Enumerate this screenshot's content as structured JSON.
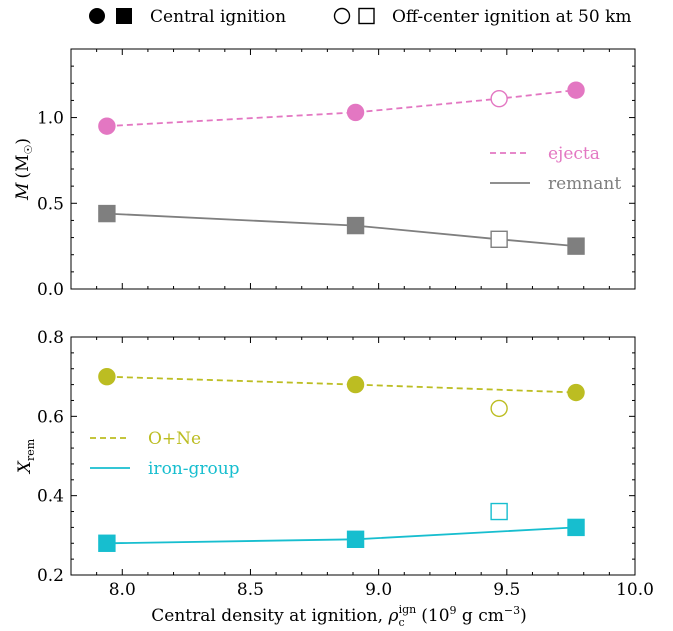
{
  "chart_data": [
    {
      "type": "line",
      "panel": "top",
      "ylabel": "M (M☉)",
      "xlim": [
        7.8,
        10.0
      ],
      "ylim": [
        0.0,
        1.4
      ],
      "yticks": [
        0.0,
        0.5,
        1.0
      ],
      "ytick_labels": [
        "0.0",
        "0.5",
        "1.0"
      ],
      "legend_position": "right",
      "series": [
        {
          "name": "ejecta",
          "color": "#e377c2",
          "style": "dashed",
          "marker": "circle",
          "x": [
            7.94,
            8.91,
            9.47,
            9.77
          ],
          "y": [
            0.95,
            1.03,
            1.11,
            1.16
          ],
          "filled": [
            true,
            true,
            false,
            true
          ]
        },
        {
          "name": "remnant",
          "color": "#7f7f7f",
          "style": "solid",
          "marker": "square",
          "x": [
            7.94,
            8.91,
            9.47,
            9.77
          ],
          "y": [
            0.44,
            0.37,
            0.29,
            0.25
          ],
          "filled": [
            true,
            true,
            false,
            true
          ]
        }
      ]
    },
    {
      "type": "line",
      "panel": "bottom",
      "ylabel": "X_rem",
      "xlabel": "Central density at ignition, ρ_c^ign (10⁹ g cm⁻³)",
      "xlim": [
        7.8,
        10.0
      ],
      "ylim": [
        0.2,
        0.8
      ],
      "xticks": [
        8.0,
        8.5,
        9.0,
        9.5,
        10.0
      ],
      "xtick_labels": [
        "8.0",
        "8.5",
        "9.0",
        "9.5",
        "10.0"
      ],
      "yticks": [
        0.2,
        0.4,
        0.6,
        0.8
      ],
      "ytick_labels": [
        "0.2",
        "0.4",
        "0.6",
        "0.8"
      ],
      "legend_position": "left",
      "series": [
        {
          "name": "O+Ne",
          "color": "#bcbd22",
          "style": "dashed",
          "marker": "circle",
          "x": [
            7.94,
            8.91,
            9.47,
            9.77
          ],
          "y": [
            0.7,
            0.68,
            0.62,
            0.66
          ],
          "filled": [
            true,
            true,
            false,
            true
          ],
          "line_points": [
            0,
            1,
            3
          ]
        },
        {
          "name": "iron-group",
          "color": "#17becf",
          "style": "solid",
          "marker": "square",
          "x": [
            7.94,
            8.91,
            9.47,
            9.77
          ],
          "y": [
            0.28,
            0.29,
            0.36,
            0.32
          ],
          "filled": [
            true,
            true,
            false,
            true
          ],
          "line_points": [
            0,
            1,
            3
          ]
        }
      ]
    }
  ],
  "top_legend": {
    "central": "Central ignition",
    "offcenter": "Off-center ignition at 50 km"
  },
  "xaxis_text": {
    "prefix": "Central density at ignition, ",
    "rho": "ρ",
    "sub": "c",
    "sup": "ign",
    "units_open": "(10",
    "nine": "9",
    "units_mid": " g cm",
    "neg3": "−3",
    "units_close": ")"
  },
  "yaxis_top_text": {
    "M": "M",
    "units": "(M",
    "sun": "☉",
    "close": ")"
  },
  "yaxis_bottom_text": {
    "X": "X",
    "sub": "rem"
  }
}
